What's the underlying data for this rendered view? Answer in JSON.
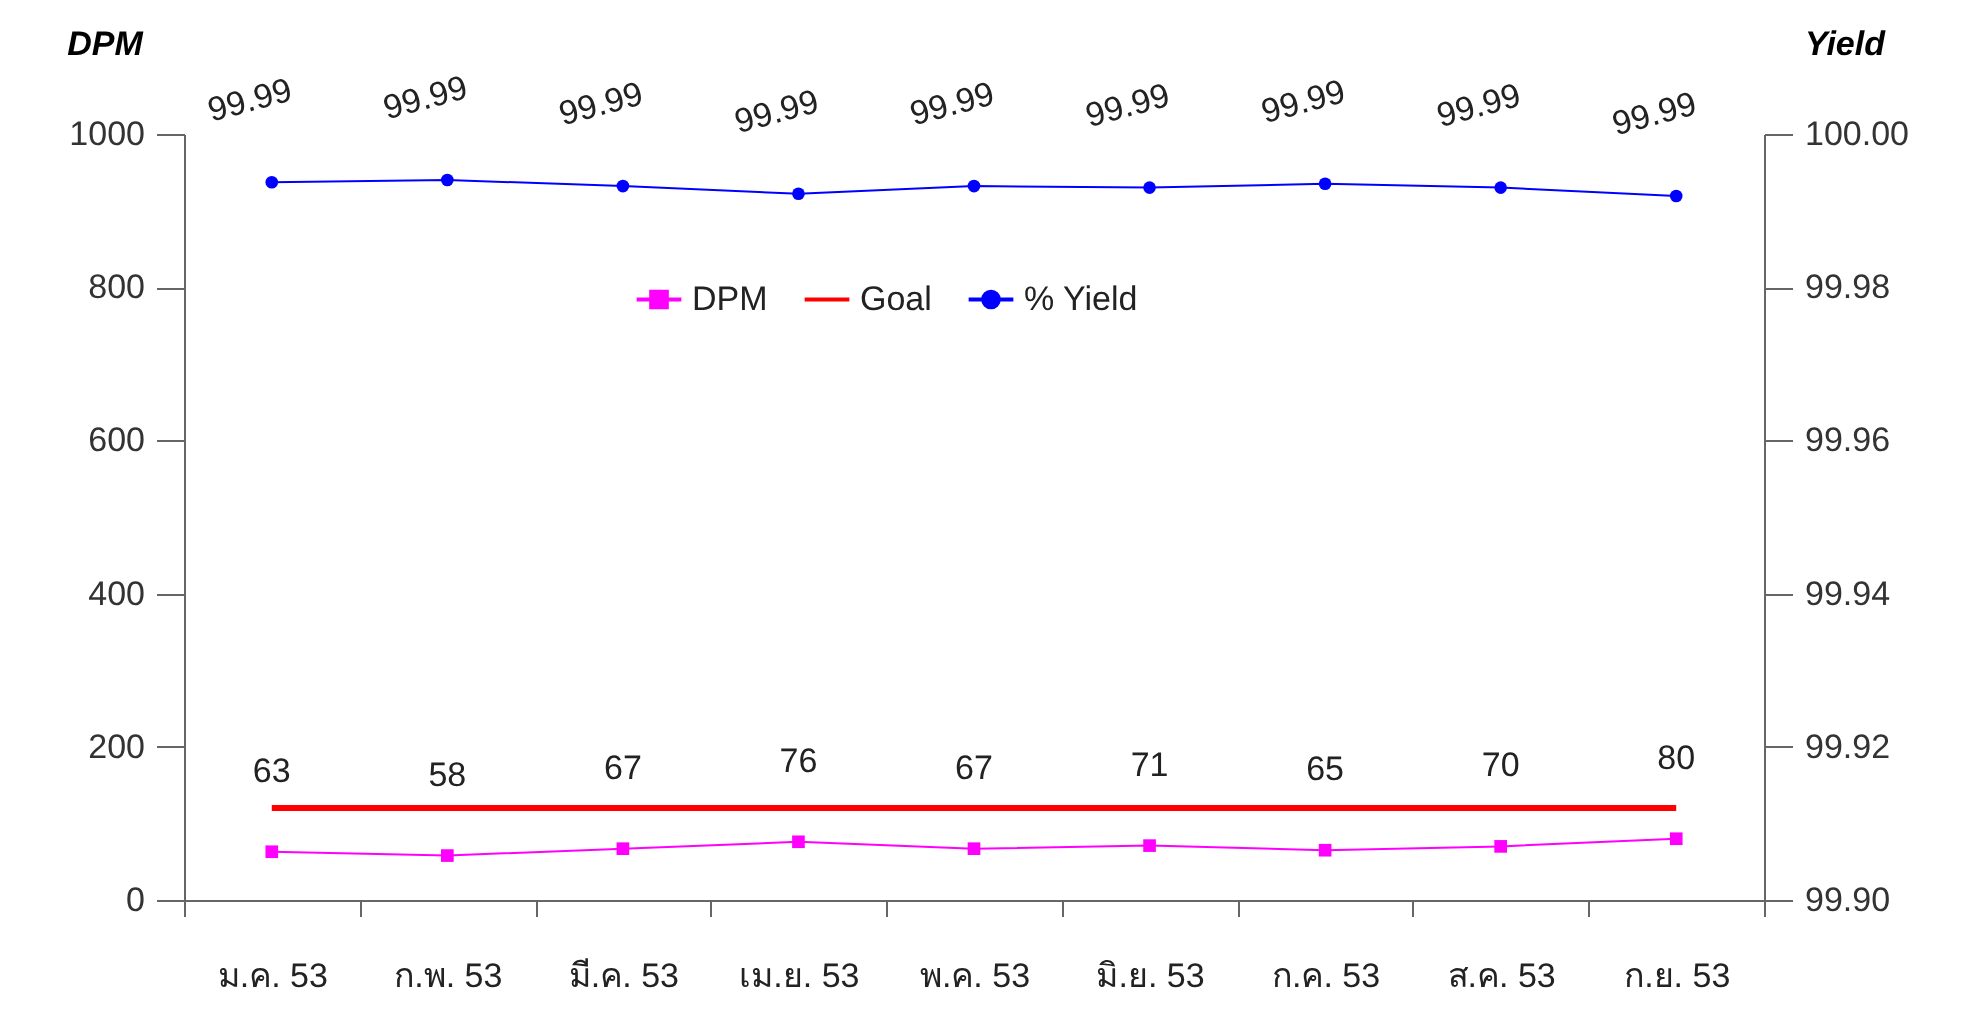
{
  "chart_data": {
    "type": "line",
    "ylabel": "DPM",
    "y2label": "Yield",
    "categories": [
      "ม.ค. 53",
      "ก.พ. 53",
      "มี.ค. 53",
      "เม.ย. 53",
      "พ.ค. 53",
      "มิ.ย. 53",
      "ก.ค. 53",
      "ส.ค. 53",
      "ก.ย. 53"
    ],
    "series": [
      {
        "name": "DPM",
        "color": "#ff00ff",
        "marker": "square",
        "values": [
          63,
          58,
          67,
          76,
          67,
          71,
          65,
          70,
          80
        ],
        "value_labels": [
          "63",
          "58",
          "67",
          "76",
          "67",
          "71",
          "65",
          "70",
          "80"
        ]
      },
      {
        "name": "Goal",
        "color": "#ff0000",
        "marker": "none",
        "values": [
          120,
          120,
          120,
          120,
          120,
          120,
          120,
          120,
          120
        ]
      },
      {
        "name": "% Yield",
        "color": "#0000ff",
        "marker": "circle",
        "axis": "y2",
        "values": [
          99.9937,
          99.994,
          99.9932,
          99.9922,
          99.9932,
          99.993,
          99.9935,
          99.993,
          99.9919
        ],
        "value_labels": [
          "99.99",
          "99.99",
          "99.99",
          "99.99",
          "99.99",
          "99.99",
          "99.99",
          "99.99",
          "99.99"
        ]
      }
    ],
    "ylim": [
      0,
      1000
    ],
    "yticks": [
      0,
      200,
      400,
      600,
      800,
      1000
    ],
    "y2lim": [
      99.9,
      100
    ],
    "y2ticks": [
      {
        "value": 99.9,
        "label": "99.90"
      },
      {
        "value": 99.92,
        "label": "99.92"
      },
      {
        "value": 99.94,
        "label": "99.94"
      },
      {
        "value": 99.96,
        "label": "99.96"
      },
      {
        "value": 99.98,
        "label": "99.98"
      },
      {
        "value": 100,
        "label": "100.00"
      }
    ],
    "grid": false,
    "legend": "top"
  }
}
